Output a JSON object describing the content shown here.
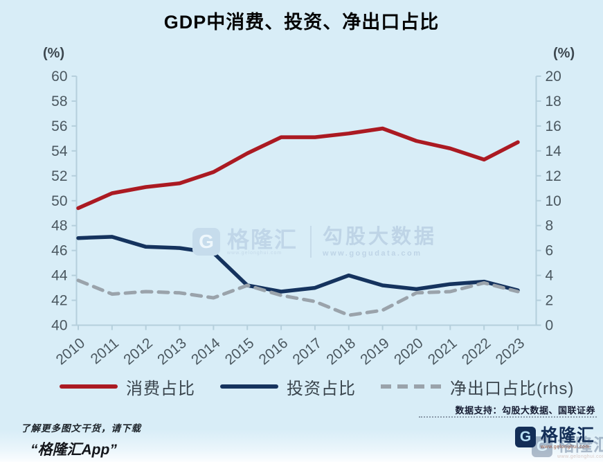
{
  "title": "GDP中消费、投资、净出口占比",
  "axes": {
    "left_unit": "(%)",
    "right_unit": "(%)"
  },
  "chart_data": {
    "type": "line",
    "x": [
      2010,
      2011,
      2012,
      2013,
      2014,
      2015,
      2016,
      2017,
      2018,
      2019,
      2020,
      2021,
      2022,
      2023
    ],
    "left_ylim": [
      40,
      60
    ],
    "right_ylim": [
      0,
      20
    ],
    "tick_step": 2,
    "grid": false,
    "legend_position": "bottom",
    "series": [
      {
        "id": "consumption",
        "name": "消费占比",
        "axis": "left",
        "line": "solid",
        "color": "#ab1a22",
        "values": [
          49.4,
          50.6,
          51.1,
          51.4,
          52.3,
          53.8,
          55.1,
          55.1,
          55.4,
          55.8,
          54.8,
          54.2,
          53.3,
          54.7
        ]
      },
      {
        "id": "investment",
        "name": "投资占比",
        "axis": "left",
        "line": "solid",
        "color": "#15335e",
        "values": [
          47.0,
          47.1,
          46.3,
          46.2,
          45.8,
          43.2,
          42.7,
          43.0,
          44.0,
          43.2,
          42.9,
          43.3,
          43.5,
          42.8
        ]
      },
      {
        "id": "net-exports",
        "name": "净出口占比(rhs)",
        "axis": "right",
        "line": "dashed",
        "color": "#9aa3ab",
        "values": [
          3.6,
          2.5,
          2.7,
          2.6,
          2.2,
          3.2,
          2.4,
          1.9,
          0.8,
          1.2,
          2.6,
          2.7,
          3.4,
          2.7
        ]
      }
    ]
  },
  "watermark": {
    "icon": "gelonghui-g-icon",
    "icon_letter": "G",
    "brand": "格隆汇",
    "brand_url": "www.gelonghui.com",
    "partner": "勾股大数据",
    "partner_url": "www.gogudata.com"
  },
  "credit": "数据支持：勾股大数据、国联证券",
  "footer": {
    "promo_line1": "了解更多图文干货，请下载",
    "promo_line2": "“格隆汇App”",
    "logo_letter": "G",
    "logo_text": "格隆汇",
    "logo_url": "www.gelonghui.com"
  },
  "colors": {
    "background": "#d8edf7",
    "consumption": "#ab1a22",
    "investment": "#15335e",
    "net_exports": "#9aa3ab",
    "axis": "#b5cfdc",
    "tick_text": "#4b5860"
  }
}
